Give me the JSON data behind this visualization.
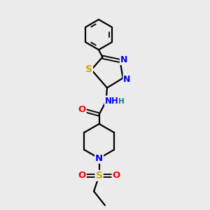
{
  "bg_color": "#ebebeb",
  "bond_color": "#000000",
  "bond_width": 1.6,
  "atom_colors": {
    "N": "#0000ff",
    "S": "#ccaa00",
    "O": "#ff0000",
    "H": "#008080",
    "C": "#000000"
  },
  "font_size": 8.5,
  "fig_size": [
    3.0,
    3.0
  ],
  "dpi": 100
}
